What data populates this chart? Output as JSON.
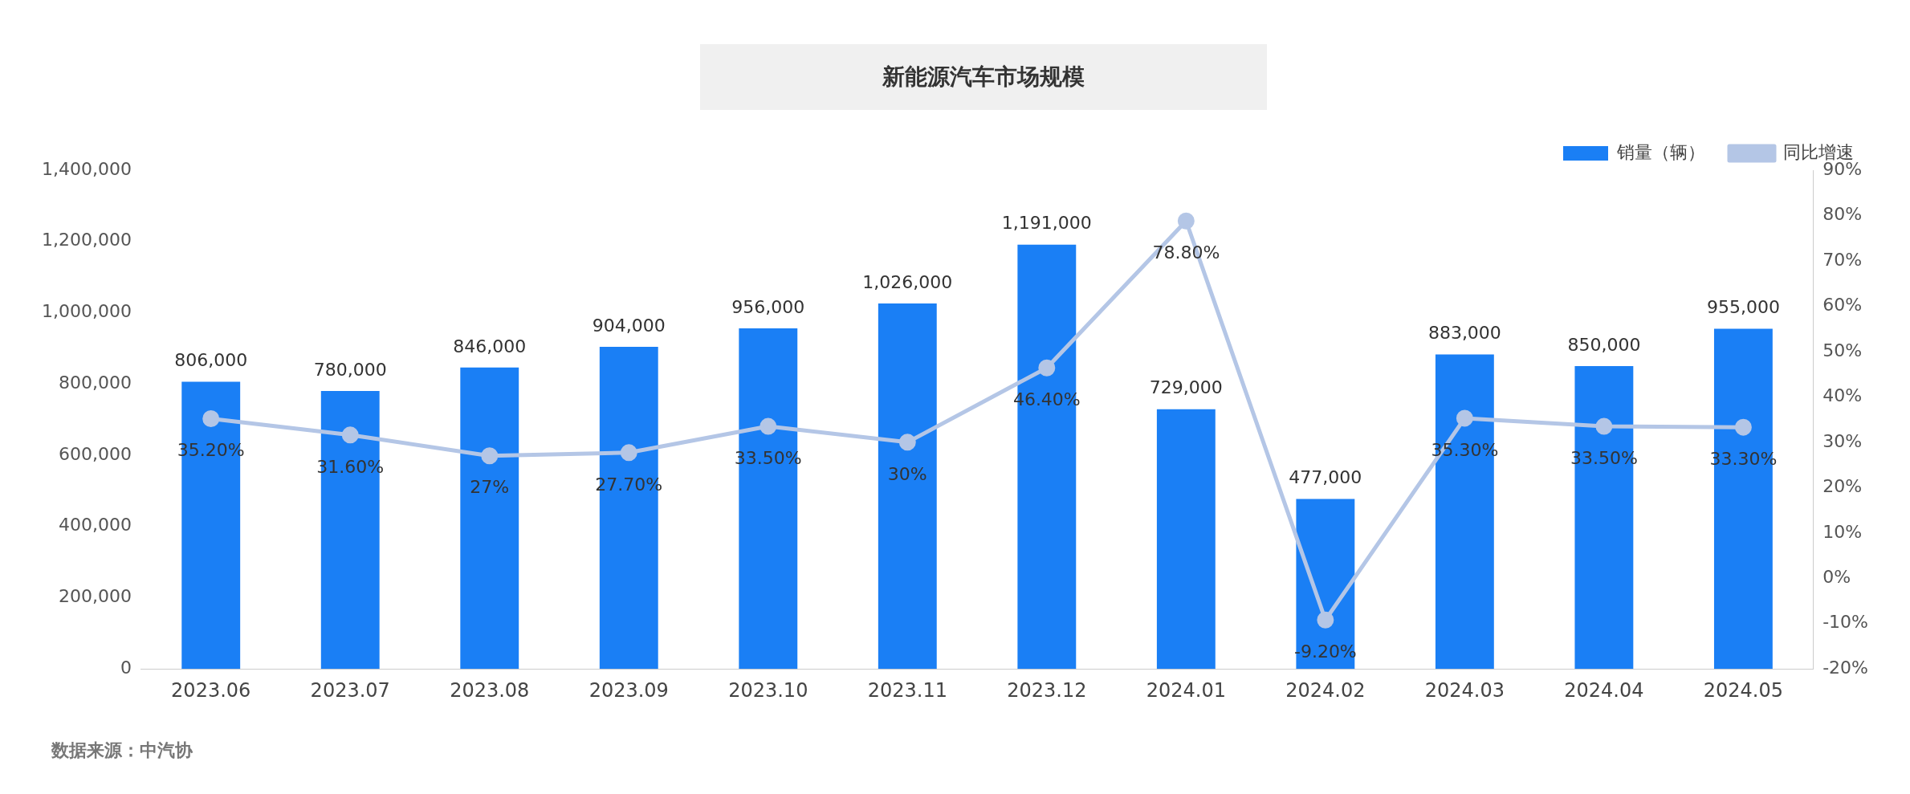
{
  "chart_data": {
    "type": "bar",
    "title": "新能源汽车市场规模",
    "categories": [
      "2023.06",
      "2023.07",
      "2023.08",
      "2023.09",
      "2023.10",
      "2023.11",
      "2023.12",
      "2024.01",
      "2024.02",
      "2024.03",
      "2024.04",
      "2024.05"
    ],
    "series": [
      {
        "name": "销量（辆）",
        "color": "#1a7ff5",
        "values": [
          806000,
          780000,
          846000,
          904000,
          956000,
          1026000,
          1191000,
          729000,
          477000,
          883000,
          850000,
          955000
        ],
        "value_labels": [
          "806,000",
          "780,000",
          "846,000",
          "904,000",
          "956,000",
          "1,026,000",
          "1,191,000",
          "729,000",
          "477,000",
          "883,000",
          "850,000",
          "955,000"
        ]
      },
      {
        "name": "同比增速",
        "type": "line",
        "axis": "y2",
        "color": "#b4c6e6",
        "marker": "circle",
        "values": [
          35.2,
          31.6,
          27,
          27.7,
          33.5,
          30,
          46.4,
          78.8,
          -9.2,
          35.3,
          33.5,
          33.3
        ],
        "value_labels": [
          "35.20%",
          "31.60%",
          "27%",
          "27.70%",
          "33.50%",
          "30%",
          "46.40%",
          "78.80%",
          "-9.20%",
          "35.30%",
          "33.50%",
          "33.30%"
        ]
      }
    ],
    "ylim": [
      0,
      1400000
    ],
    "yticks": [
      0,
      {
        "value": 200000,
        "label": "200,000"
      },
      {
        "value": 400000,
        "label": "400,000"
      },
      {
        "value": 600000,
        "label": "600,000"
      },
      {
        "value": 800000,
        "label": "800,000"
      },
      {
        "value": 1000000,
        "label": "1,000,000"
      },
      {
        "value": 1200000,
        "label": "1,200,000"
      },
      {
        "value": 1400000,
        "label": "1,400,000"
      }
    ],
    "y2lim": [
      -20,
      90
    ],
    "y2ticks": [
      {
        "value": -20,
        "label": "-20%"
      },
      {
        "value": -10,
        "label": "-10%"
      },
      {
        "value": 0,
        "label": "0%"
      },
      {
        "value": 10,
        "label": "10%"
      },
      {
        "value": 20,
        "label": "20%"
      },
      {
        "value": 30,
        "label": "30%"
      },
      {
        "value": 40,
        "label": "40%"
      },
      {
        "value": 50,
        "label": "50%"
      },
      {
        "value": 60,
        "label": "60%"
      },
      {
        "value": 70,
        "label": "70%"
      },
      {
        "value": 80,
        "label": "80%"
      },
      {
        "value": 90,
        "label": "90%"
      }
    ],
    "grid": false,
    "legend": "top right",
    "annotations": [
      "数据来源：中汽协"
    ]
  }
}
